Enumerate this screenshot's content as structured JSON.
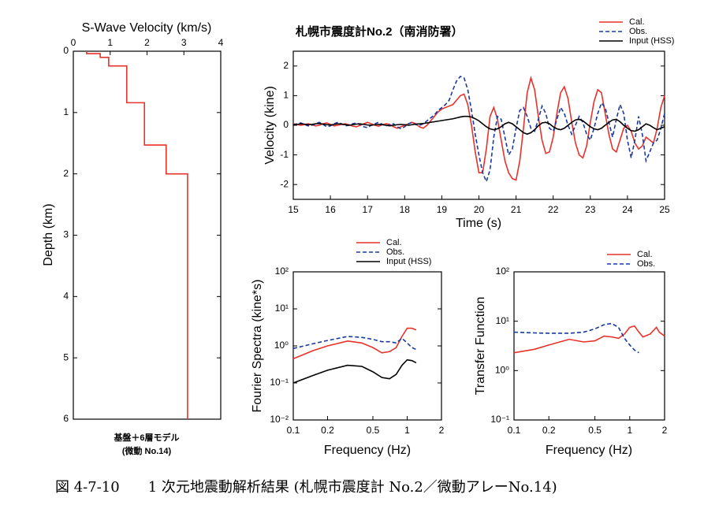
{
  "chart_data": [
    {
      "type": "line",
      "title": "S-Wave Velocity (km/s)",
      "ylabel": "Depth (km)",
      "xlim": [
        0,
        4
      ],
      "xticks": [
        0,
        1,
        2,
        3,
        4
      ],
      "ylim": [
        0,
        6
      ],
      "yticks": [
        0,
        1,
        2,
        3,
        4,
        5,
        6
      ],
      "yreverse": true,
      "xaxis_position": "top",
      "annotations": [
        "基盤＋6層モデル",
        "(微動 No.14)"
      ],
      "series": [
        {
          "color": "#e8322b",
          "x": [
            0.36,
            0.36,
            0.73,
            0.73,
            0.96,
            0.96,
            1.45,
            1.45,
            1.93,
            1.93,
            2.52,
            2.52,
            3.1,
            3.1
          ],
          "values": [
            0,
            0.04,
            0.04,
            0.1,
            0.1,
            0.24,
            0.24,
            0.84,
            0.84,
            1.53,
            1.53,
            2.0,
            2.0,
            6
          ]
        }
      ]
    },
    {
      "type": "line",
      "title": "札幌市震度計No.2（南消防署）",
      "xlabel": "Time (s)",
      "ylabel": "Velocity (kine)",
      "xlim": [
        15,
        25
      ],
      "xticks": [
        15,
        16,
        17,
        18,
        19,
        20,
        21,
        22,
        23,
        24,
        25
      ],
      "ylim": [
        -2.5,
        2.5
      ],
      "yticks": [
        -2,
        -1,
        0,
        1,
        2
      ],
      "legend": "upper right",
      "x": [
        15,
        15.1,
        15.2,
        15.3,
        15.4,
        15.5,
        15.6,
        15.7,
        15.8,
        15.9,
        16,
        16.1,
        16.2,
        16.3,
        16.4,
        16.5,
        16.6,
        16.7,
        16.8,
        16.9,
        17,
        17.1,
        17.2,
        17.3,
        17.4,
        17.5,
        17.6,
        17.7,
        17.8,
        17.9,
        18,
        18.1,
        18.2,
        18.3,
        18.4,
        18.5,
        18.6,
        18.7,
        18.8,
        18.9,
        19,
        19.1,
        19.2,
        19.3,
        19.4,
        19.5,
        19.6,
        19.7,
        19.8,
        19.9,
        20,
        20.1,
        20.2,
        20.3,
        20.4,
        20.5,
        20.6,
        20.7,
        20.8,
        20.9,
        21,
        21.1,
        21.2,
        21.3,
        21.4,
        21.5,
        21.6,
        21.7,
        21.8,
        21.9,
        22,
        22.1,
        22.2,
        22.3,
        22.4,
        22.5,
        22.6,
        22.7,
        22.8,
        22.9,
        23,
        23.1,
        23.2,
        23.3,
        23.4,
        23.5,
        23.6,
        23.7,
        23.8,
        23.9,
        24,
        24.1,
        24.2,
        24.3,
        24.4,
        24.5,
        24.6,
        24.7,
        24.8,
        24.9,
        25
      ],
      "series": [
        {
          "name": "Cal.",
          "color": "#e8322b",
          "linestyle": "solid",
          "values": [
            0.05,
            0.03,
            0,
            0.02,
            0.05,
            0.02,
            -0.02,
            0,
            0.05,
            0.08,
            0.03,
            -0.02,
            0,
            0.03,
            0.05,
            0.02,
            -0.03,
            -0.05,
            0,
            0.05,
            0.1,
            0.05,
            0,
            -0.03,
            0.02,
            0.05,
            0.03,
            -0.05,
            -0.1,
            -0.05,
            0,
            0.05,
            0.1,
            0.05,
            -0.05,
            -0.1,
            0,
            0.15,
            0.3,
            0.45,
            0.55,
            0.6,
            0.65,
            0.7,
            0.85,
            1.0,
            1.05,
            0.7,
            0,
            -0.9,
            -1.6,
            -1.6,
            -0.8,
            0.3,
            0.6,
            0.2,
            -0.5,
            -1.2,
            -1.6,
            -1.8,
            -1.85,
            -1.2,
            -0.1,
            1.1,
            1.6,
            1.2,
            0.3,
            -0.5,
            -0.95,
            -0.9,
            -0.4,
            0.4,
            1.1,
            1.3,
            0.9,
            0.1,
            -0.6,
            -1.0,
            -1.1,
            -0.7,
            0.1,
            0.8,
            1.2,
            1.1,
            0.4,
            -0.3,
            -0.8,
            -0.9,
            -0.5,
            -0.1,
            0,
            -0.2,
            -0.6,
            -0.8,
            -0.7,
            -0.4,
            -0.5,
            -0.6,
            -0.1,
            0.6,
            1.0
          ]
        },
        {
          "name": "Obs.",
          "color": "#1a3aa0",
          "linestyle": "dashed",
          "values": [
            0.02,
            0.05,
            0.08,
            0.03,
            -0.02,
            0,
            0.05,
            0.1,
            0.03,
            -0.05,
            -0.02,
            0.05,
            0.1,
            0.05,
            -0.02,
            0,
            0.05,
            0.08,
            0.02,
            -0.05,
            -0.08,
            0,
            0.05,
            0.1,
            0.03,
            -0.02,
            0.02,
            0.05,
            -0.05,
            -0.12,
            -0.05,
            0.05,
            0.1,
            0.02,
            0,
            0.05,
            0.15,
            0.25,
            0.35,
            0.5,
            0.6,
            0.7,
            0.85,
            1.2,
            1.5,
            1.65,
            1.6,
            1.2,
            0.5,
            -0.3,
            -1.0,
            -1.6,
            -1.9,
            -1.5,
            -0.4,
            0.3,
            0.2,
            -0.4,
            -1.0,
            -0.8,
            -0.1,
            0.5,
            0.6,
            0.3,
            -0.1,
            -0.2,
            0.2,
            0.65,
            0.4,
            -0.1,
            -0.2,
            0.2,
            0.6,
            0.4,
            0,
            -0.3,
            0,
            0.3,
            0.1,
            -0.3,
            -0.5,
            -0.1,
            0.4,
            0.75,
            0.6,
            0.1,
            -0.4,
            0.2,
            0.7,
            0.4,
            -0.5,
            -1.1,
            -0.5,
            0.3,
            -0.3,
            -1.2,
            -0.9,
            -0.6,
            -0.5,
            -0.1,
            0.4
          ]
        },
        {
          "name": "Input (HSS)",
          "color": "#000000",
          "linestyle": "solid",
          "values": [
            0.02,
            0.03,
            0.05,
            0.04,
            0.02,
            0.03,
            0.05,
            0.06,
            0.04,
            0.02,
            0.01,
            0.03,
            0.05,
            0.04,
            0.02,
            0,
            0.02,
            0.04,
            0.05,
            0.03,
            0.01,
            0,
            0.02,
            0.03,
            0.02,
            0,
            -0.02,
            0,
            0.02,
            0.03,
            0.02,
            0,
            0.02,
            0.04,
            0.05,
            0.06,
            0.08,
            0.1,
            0.12,
            0.14,
            0.16,
            0.18,
            0.2,
            0.22,
            0.25,
            0.28,
            0.3,
            0.3,
            0.28,
            0.22,
            0.15,
            0.05,
            -0.05,
            -0.12,
            -0.15,
            -0.12,
            -0.05,
            0.05,
            0.1,
            0.05,
            -0.05,
            -0.15,
            -0.25,
            -0.3,
            -0.25,
            -0.15,
            -0.02,
            0.08,
            0.1,
            0.05,
            -0.05,
            -0.12,
            -0.15,
            -0.1,
            0,
            0.1,
            0.18,
            0.2,
            0.15,
            0.05,
            -0.05,
            -0.12,
            -0.15,
            -0.1,
            0,
            0.1,
            0.18,
            0.2,
            0.12,
            0,
            -0.1,
            -0.18,
            -0.2,
            -0.15,
            -0.05,
            0.05,
            0,
            -0.08,
            -0.15,
            -0.1,
            -0.05
          ]
        }
      ]
    },
    {
      "type": "line",
      "xlabel": "Frequency (Hz)",
      "ylabel": "Fourier Spectra (kine*s)",
      "xscale": "log",
      "yscale": "log",
      "xlim": [
        0.1,
        2
      ],
      "xticks": [
        0.1,
        0.2,
        0.5,
        1,
        2
      ],
      "ylim": [
        0.01,
        100
      ],
      "yticks": [
        {
          "value": 0.01,
          "label": "10⁻²"
        },
        {
          "value": 0.1,
          "label": "10⁻¹"
        },
        {
          "value": 1,
          "label": "10⁰"
        },
        {
          "value": 10,
          "label": "10¹"
        },
        {
          "value": 100,
          "label": "10²"
        }
      ],
      "legend": "upper center",
      "x": [
        0.1,
        0.15,
        0.2,
        0.3,
        0.4,
        0.5,
        0.6,
        0.7,
        0.8,
        0.9,
        1,
        1.1,
        1.2
      ],
      "series": [
        {
          "name": "Cal.",
          "color": "#e8322b",
          "linestyle": "solid",
          "values": [
            0.45,
            0.75,
            1.0,
            1.35,
            1.2,
            0.9,
            0.65,
            0.7,
            0.9,
            1.8,
            3,
            3,
            2.7
          ]
        },
        {
          "name": "Obs.",
          "color": "#1a3aa0",
          "linestyle": "dashed",
          "values": [
            0.85,
            1.15,
            1.4,
            1.8,
            1.7,
            1.5,
            1.3,
            1.3,
            1.2,
            1.6,
            1.2,
            0.9,
            0.8
          ]
        },
        {
          "name": "Input (HSS)",
          "color": "#000000",
          "linestyle": "solid",
          "values": [
            0.1,
            0.16,
            0.22,
            0.3,
            0.28,
            0.2,
            0.14,
            0.13,
            0.17,
            0.3,
            0.42,
            0.4,
            0.35
          ]
        }
      ]
    },
    {
      "type": "line",
      "xlabel": "Frequency (Hz)",
      "ylabel": "Transfer Function",
      "xscale": "log",
      "yscale": "log",
      "xlim": [
        0.1,
        2
      ],
      "xticks": [
        0.1,
        0.2,
        0.5,
        1,
        2
      ],
      "ylim": [
        0.1,
        100
      ],
      "yticks": [
        {
          "value": 0.1,
          "label": "10⁻¹"
        },
        {
          "value": 1,
          "label": "10⁰"
        },
        {
          "value": 10,
          "label": "10¹"
        },
        {
          "value": 100,
          "label": "10²"
        }
      ],
      "legend": "upper right",
      "x": [
        0.1,
        0.15,
        0.2,
        0.3,
        0.4,
        0.5,
        0.6,
        0.7,
        0.8,
        0.9,
        1,
        1.1,
        1.2,
        1.3,
        1.5,
        1.7,
        1.8,
        2
      ],
      "series": [
        {
          "name": "Cal.",
          "color": "#e8322b",
          "linestyle": "solid",
          "values": [
            2.3,
            2.7,
            3.3,
            4.3,
            3.8,
            4,
            5,
            4.8,
            4.5,
            5.5,
            7.5,
            8,
            6,
            4.8,
            5.5,
            7.5,
            6,
            5
          ]
        },
        {
          "name": "Obs.",
          "color": "#1a3aa0",
          "linestyle": "dashed",
          "values": [
            6,
            5.8,
            5.7,
            5.7,
            6,
            7,
            8.5,
            9,
            7.5,
            4.5,
            3.3,
            2.6,
            2.3,
            null,
            null,
            null,
            null,
            null
          ]
        }
      ]
    }
  ],
  "caption": "図 4-7-10　　1 次元地震動解析結果 (札幌市震度計 No.2／微動アレーNo.14)"
}
